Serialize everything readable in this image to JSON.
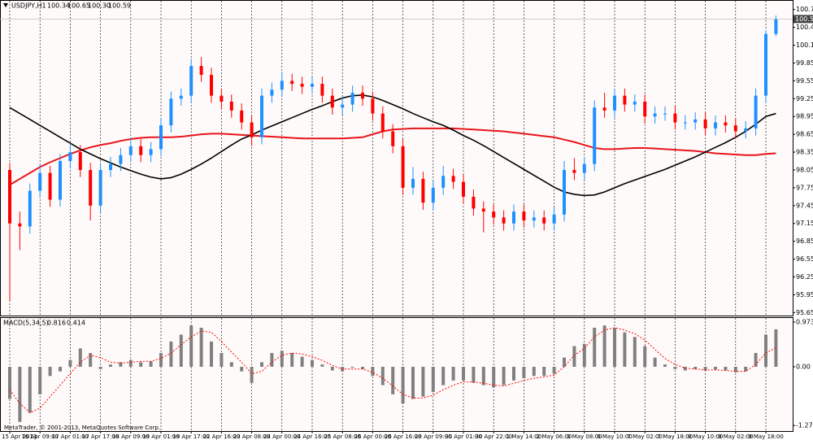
{
  "chart_data": [
    {
      "type": "candlestick",
      "title": "USDJPY,H1",
      "last_bar_labels": [
        "100.34",
        "100.65",
        "100.30",
        "100.59"
      ],
      "categories": [
        "15 Apr 2013",
        null,
        null,
        "16 Apr 09:00",
        null,
        null,
        "17 Apr 01:00",
        null,
        null,
        "17 Apr 17:00",
        null,
        null,
        "18 Apr 09:00",
        null,
        null,
        "19 Apr 01:00",
        null,
        null,
        "19 Apr 17:00",
        null,
        null,
        "22 Apr 16:00",
        null,
        null,
        "23 Apr 08:00",
        null,
        null,
        "24 Apr 00:00",
        null,
        null,
        "24 Apr 16:00",
        null,
        null,
        "25 Apr 08:00",
        null,
        null,
        "26 Apr 00:00",
        null,
        null,
        "26 Apr 16:00",
        null,
        null,
        "29 Apr 09:00",
        null,
        null,
        "30 Apr 01:00",
        null,
        null,
        "30 Apr 22:00",
        null,
        null,
        "1 May 14:00",
        null,
        null,
        "2 May 06:00",
        null,
        null,
        "3 May 08:00",
        null,
        null,
        "6 May 10:00",
        null,
        null,
        "7 May 02:00",
        null,
        null,
        "7 May 18:00",
        null,
        null,
        "8 May 10:00",
        null,
        null,
        "9 May 02:00",
        null,
        null,
        "9 May 18:00",
        null
      ],
      "open": [
        98.05,
        97.15,
        97.1,
        97.7,
        98.0,
        97.55,
        98.2,
        98.35,
        98.05,
        97.45,
        98.05,
        98.15,
        98.3,
        98.45,
        98.3,
        98.4,
        98.8,
        99.25,
        99.3,
        99.8,
        99.65,
        99.3,
        99.2,
        99.05,
        98.85,
        98.6,
        99.3,
        99.4,
        99.55,
        99.5,
        99.45,
        99.5,
        99.3,
        99.1,
        99.15,
        99.35,
        99.25,
        99.0,
        98.7,
        98.45,
        97.75,
        97.9,
        97.5,
        97.75,
        97.95,
        97.85,
        97.6,
        97.4,
        97.35,
        97.25,
        97.15,
        97.35,
        97.2,
        97.25,
        97.15,
        97.3,
        98.05,
        98.0,
        98.15,
        99.1,
        99.05,
        99.3,
        99.15,
        99.2,
        98.95,
        99.0,
        99.0,
        98.85,
        98.85,
        98.9,
        98.75,
        98.85,
        98.8,
        98.7,
        98.75,
        99.3,
        100.34
      ],
      "high": [
        98.17,
        97.35,
        97.82,
        98.15,
        98.12,
        98.32,
        98.5,
        98.47,
        98.17,
        98.17,
        98.27,
        98.42,
        98.6,
        98.57,
        98.52,
        98.92,
        99.37,
        99.42,
        99.92,
        99.95,
        99.77,
        99.42,
        99.32,
        99.17,
        98.97,
        99.42,
        99.52,
        99.7,
        99.67,
        99.62,
        99.62,
        99.62,
        99.42,
        99.27,
        99.47,
        99.47,
        99.37,
        99.12,
        98.82,
        98.57,
        98.1,
        98.02,
        97.87,
        98.12,
        98.07,
        97.97,
        97.72,
        97.52,
        97.47,
        97.37,
        97.47,
        97.47,
        97.37,
        97.37,
        97.42,
        98.2,
        98.25,
        98.27,
        99.22,
        99.35,
        99.42,
        99.42,
        99.32,
        99.32,
        99.12,
        99.12,
        99.12,
        98.97,
        99.02,
        99.02,
        98.97,
        98.97,
        98.92,
        98.87,
        99.42,
        100.4,
        100.65
      ],
      "low": [
        95.85,
        96.7,
        96.98,
        97.58,
        97.43,
        97.43,
        98.08,
        97.93,
        97.2,
        97.33,
        97.93,
        98.03,
        98.18,
        98.18,
        98.18,
        98.28,
        98.68,
        99.13,
        99.18,
        99.53,
        99.18,
        99.08,
        98.93,
        98.73,
        98.45,
        98.48,
        99.18,
        99.28,
        99.38,
        99.33,
        99.33,
        99.18,
        98.98,
        98.98,
        99.03,
        99.13,
        98.88,
        98.58,
        98.33,
        97.63,
        97.63,
        97.38,
        97.38,
        97.63,
        97.73,
        97.48,
        97.28,
        97.0,
        97.13,
        97.03,
        97.03,
        97.08,
        97.08,
        97.03,
        97.03,
        97.18,
        97.88,
        97.88,
        98.03,
        98.93,
        98.93,
        99.03,
        99.03,
        98.83,
        98.83,
        98.88,
        98.73,
        98.73,
        98.73,
        98.63,
        98.63,
        98.68,
        98.58,
        98.58,
        98.63,
        99.18,
        100.3
      ],
      "close": [
        97.15,
        97.1,
        97.7,
        98.0,
        97.55,
        98.2,
        98.35,
        98.05,
        97.45,
        98.05,
        98.15,
        98.3,
        98.45,
        98.3,
        98.4,
        98.8,
        99.25,
        99.3,
        99.8,
        99.65,
        99.3,
        99.2,
        99.05,
        98.85,
        98.6,
        99.3,
        99.4,
        99.55,
        99.5,
        99.45,
        99.5,
        99.3,
        99.1,
        99.15,
        99.35,
        99.25,
        99.0,
        98.7,
        98.45,
        97.75,
        97.9,
        97.5,
        97.75,
        97.95,
        97.85,
        97.6,
        97.4,
        97.35,
        97.25,
        97.15,
        97.35,
        97.2,
        97.25,
        97.15,
        97.3,
        98.05,
        98.0,
        98.15,
        99.1,
        99.05,
        99.3,
        99.15,
        99.2,
        98.95,
        99.0,
        99.0,
        98.85,
        98.85,
        98.9,
        98.75,
        98.85,
        98.8,
        98.7,
        98.75,
        99.3,
        100.34,
        100.59
      ],
      "up_color": "#1e90ff",
      "down_color": "#ff0000",
      "lines": [
        {
          "color": "#e8141a",
          "values": [
            97.8,
            97.9,
            98.0,
            98.1,
            98.18,
            98.25,
            98.32,
            98.38,
            98.43,
            98.47,
            98.5,
            98.54,
            98.57,
            98.59,
            98.6,
            98.6,
            98.6,
            98.61,
            98.63,
            98.65,
            98.66,
            98.66,
            98.65,
            98.64,
            98.63,
            98.62,
            98.61,
            98.6,
            98.59,
            98.58,
            98.58,
            98.58,
            98.58,
            98.58,
            98.59,
            98.6,
            98.65,
            98.7,
            98.73,
            98.74,
            98.75,
            98.75,
            98.75,
            98.75,
            98.75,
            98.74,
            98.73,
            98.72,
            98.71,
            98.7,
            98.68,
            98.66,
            98.64,
            98.62,
            98.6,
            98.56,
            98.52,
            98.47,
            98.42,
            98.4,
            98.4,
            98.41,
            98.42,
            98.42,
            98.41,
            98.4,
            98.39,
            98.38,
            98.37,
            98.35,
            98.33,
            98.32,
            98.31,
            98.3,
            98.3,
            98.32,
            98.33
          ]
        },
        {
          "color": "#000000",
          "values": [
            99.1,
            99.0,
            98.9,
            98.8,
            98.7,
            98.6,
            98.5,
            98.4,
            98.32,
            98.24,
            98.17,
            98.1,
            98.04,
            97.98,
            97.93,
            97.9,
            97.92,
            97.98,
            98.06,
            98.15,
            98.25,
            98.36,
            98.47,
            98.57,
            98.64,
            98.72,
            98.79,
            98.86,
            98.93,
            99.0,
            99.07,
            99.13,
            99.2,
            99.26,
            99.3,
            99.31,
            99.28,
            99.22,
            99.15,
            99.08,
            99.0,
            98.93,
            98.86,
            98.8,
            98.72,
            98.63,
            98.55,
            98.46,
            98.36,
            98.26,
            98.16,
            98.06,
            97.96,
            97.86,
            97.76,
            97.68,
            97.64,
            97.62,
            97.63,
            97.68,
            97.75,
            97.82,
            97.88,
            97.94,
            98.0,
            98.06,
            98.13,
            98.2,
            98.27,
            98.35,
            98.43,
            98.51,
            98.6,
            98.7,
            98.82,
            98.95,
            99.0
          ]
        }
      ],
      "ylim": [
        95.6,
        100.91
      ],
      "yticks": [
        100.75,
        100.45,
        100.15,
        99.85,
        99.55,
        99.25,
        98.95,
        98.65,
        98.35,
        98.05,
        97.75,
        97.45,
        97.15,
        96.85,
        96.55,
        96.25,
        95.95,
        95.65
      ],
      "grid": true
    },
    {
      "type": "macd",
      "title": "MACD(5,34,5)",
      "histogram": {
        "color": "#808080",
        "values": [
          -0.7,
          -1.2,
          -1.0,
          -0.6,
          -0.2,
          -0.1,
          0.15,
          0.4,
          0.3,
          -0.05,
          0.05,
          0.1,
          0.15,
          0.1,
          0.12,
          0.3,
          0.55,
          0.7,
          0.9,
          0.85,
          0.55,
          0.3,
          0.1,
          -0.1,
          -0.35,
          0.1,
          0.3,
          0.35,
          0.3,
          0.22,
          0.15,
          0.05,
          -0.08,
          -0.1,
          -0.02,
          -0.05,
          -0.2,
          -0.4,
          -0.6,
          -0.8,
          -0.7,
          -0.65,
          -0.55,
          -0.4,
          -0.3,
          -0.3,
          -0.35,
          -0.4,
          -0.45,
          -0.4,
          -0.3,
          -0.25,
          -0.2,
          -0.2,
          -0.15,
          0.2,
          0.45,
          0.5,
          0.85,
          0.9,
          0.85,
          0.75,
          0.65,
          0.45,
          0.2,
          0.05,
          -0.05,
          -0.08,
          -0.05,
          -0.08,
          -0.06,
          -0.08,
          -0.12,
          -0.1,
          0.3,
          0.7,
          0.816
        ]
      },
      "signal": {
        "color": "#ff0000",
        "values": [
          -0.5,
          -0.8,
          -1.0,
          -0.9,
          -0.65,
          -0.4,
          -0.15,
          0.1,
          0.25,
          0.2,
          0.1,
          0.08,
          0.1,
          0.12,
          0.12,
          0.18,
          0.3,
          0.48,
          0.65,
          0.78,
          0.75,
          0.55,
          0.32,
          0.1,
          -0.15,
          -0.1,
          0.1,
          0.25,
          0.3,
          0.28,
          0.22,
          0.14,
          0.03,
          -0.05,
          -0.05,
          -0.05,
          -0.12,
          -0.25,
          -0.42,
          -0.6,
          -0.68,
          -0.68,
          -0.62,
          -0.5,
          -0.4,
          -0.33,
          -0.33,
          -0.36,
          -0.4,
          -0.42,
          -0.36,
          -0.3,
          -0.25,
          -0.22,
          -0.18,
          0.0,
          0.25,
          0.4,
          0.65,
          0.8,
          0.85,
          0.8,
          0.72,
          0.58,
          0.38,
          0.18,
          0.05,
          -0.03,
          -0.05,
          -0.07,
          -0.07,
          -0.08,
          -0.1,
          -0.1,
          0.05,
          0.3,
          0.414
        ]
      },
      "ylim": [
        -1.4,
        1.08
      ],
      "yticks": [
        0.973,
        {
          "value": 0,
          "label": "0.00"
        },
        -1.279
      ]
    }
  ],
  "footer": "MetaTrader, © 2001-2013, MetaQuotes Software Corp."
}
